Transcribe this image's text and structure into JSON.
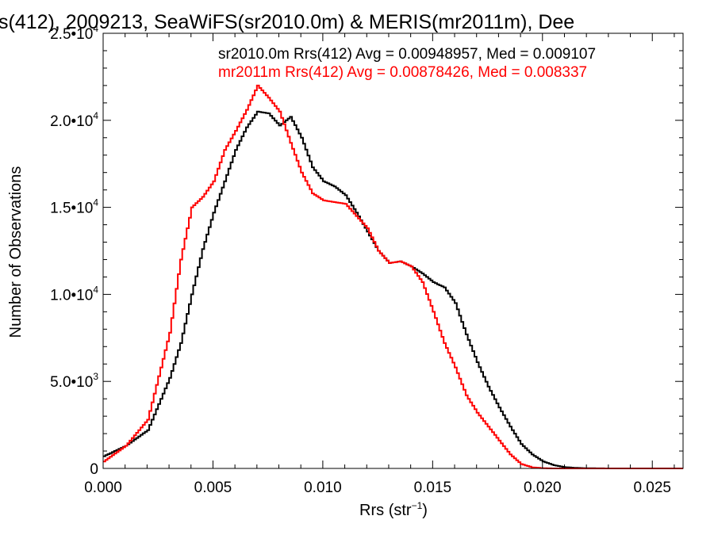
{
  "chart_data": {
    "type": "line",
    "step": true,
    "title": "s(412), 2009213, SeaWiFS(sr2010.0m) & MERIS(mr2011m), Dee",
    "xlabel": "Rrs (str",
    "xlabel_sup": "−1",
    "xlabel_close": ")",
    "ylabel": "Number of Observations",
    "xlim": [
      0.0,
      0.0264
    ],
    "ylim": [
      0,
      25000
    ],
    "xticks": [
      {
        "value": 0.0,
        "label": "0.000"
      },
      {
        "value": 0.005,
        "label": "0.005"
      },
      {
        "value": 0.01,
        "label": "0.010"
      },
      {
        "value": 0.015,
        "label": "0.015"
      },
      {
        "value": 0.02,
        "label": "0.020"
      },
      {
        "value": 0.025,
        "label": "0.025"
      }
    ],
    "yticks": [
      {
        "value": 0,
        "mantissa": "0",
        "exp": ""
      },
      {
        "value": 5000,
        "mantissa": "5.0•10",
        "exp": "3"
      },
      {
        "value": 10000,
        "mantissa": "1.0•10",
        "exp": "4"
      },
      {
        "value": 15000,
        "mantissa": "1.5•10",
        "exp": "4"
      },
      {
        "value": 20000,
        "mantissa": "2.0•10",
        "exp": "4"
      },
      {
        "value": 25000,
        "mantissa": "2.5•10",
        "exp": "4"
      }
    ],
    "series": [
      {
        "name": "sr2010.0m",
        "label": "sr2010.0m Rrs(412) Avg = 0.00948957, Med = 0.009107",
        "color": "#000000",
        "x": [
          0.0,
          0.001,
          0.002,
          0.003,
          0.0035,
          0.004,
          0.0045,
          0.005,
          0.0055,
          0.006,
          0.0065,
          0.007,
          0.0075,
          0.008,
          0.0085,
          0.009,
          0.0095,
          0.01,
          0.0105,
          0.011,
          0.0115,
          0.012,
          0.0125,
          0.013,
          0.0135,
          0.014,
          0.0145,
          0.015,
          0.0155,
          0.016,
          0.0165,
          0.017,
          0.0175,
          0.018,
          0.0185,
          0.019,
          0.0195,
          0.02,
          0.0205,
          0.021,
          0.0215,
          0.022,
          0.023,
          0.0264
        ],
        "y": [
          700,
          1300,
          2200,
          5200,
          7200,
          10000,
          12600,
          14700,
          16500,
          18300,
          19600,
          20500,
          20400,
          19700,
          20200,
          19000,
          17300,
          16500,
          16200,
          15700,
          14700,
          13600,
          12500,
          11800,
          11900,
          11600,
          11200,
          10700,
          10400,
          9500,
          7700,
          6100,
          4700,
          3500,
          2400,
          1400,
          800,
          400,
          180,
          70,
          30,
          10,
          0,
          0
        ]
      },
      {
        "name": "mr2011m",
        "label": "mr2011m Rrs(412) Avg = 0.00878426, Med = 0.008337",
        "color": "#ff0000",
        "x": [
          0.0,
          0.001,
          0.002,
          0.003,
          0.0035,
          0.004,
          0.0045,
          0.005,
          0.0055,
          0.006,
          0.0065,
          0.007,
          0.0075,
          0.008,
          0.0085,
          0.009,
          0.0095,
          0.01,
          0.0105,
          0.011,
          0.0115,
          0.012,
          0.0125,
          0.013,
          0.0135,
          0.014,
          0.0145,
          0.015,
          0.0155,
          0.016,
          0.0165,
          0.017,
          0.0175,
          0.018,
          0.0185,
          0.019,
          0.0195,
          0.02,
          0.0205,
          0.021,
          0.0215,
          0.022,
          0.023,
          0.0264
        ],
        "y": [
          400,
          1300,
          2800,
          7800,
          12000,
          15000,
          15600,
          16500,
          18300,
          19400,
          20600,
          22000,
          21300,
          20500,
          18700,
          17000,
          15800,
          15400,
          15300,
          15200,
          14500,
          13800,
          12500,
          11800,
          11900,
          11600,
          10700,
          9000,
          7200,
          5800,
          4200,
          3200,
          2400,
          1600,
          800,
          250,
          60,
          10,
          0,
          0,
          0,
          0,
          0,
          0
        ]
      }
    ],
    "grid": false,
    "legend": "top-right"
  }
}
